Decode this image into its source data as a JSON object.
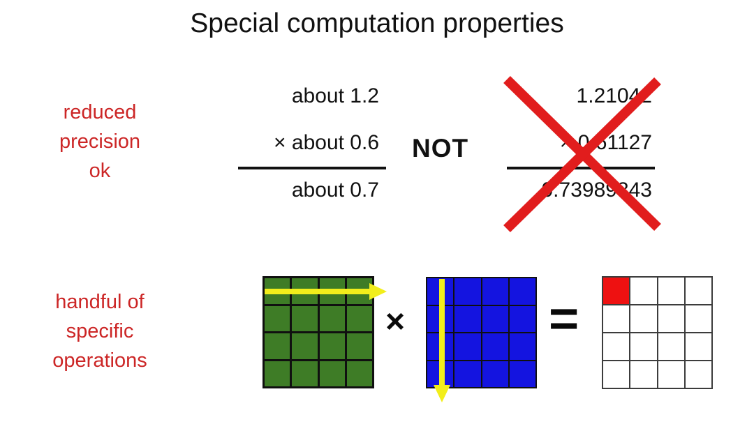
{
  "slide": {
    "title": "Special computation properties"
  },
  "colors": {
    "label_red": "#cc2626",
    "cross_red": "#e11d1d",
    "arrow_yellow": "#f2ee1b",
    "text_black": "#111111"
  },
  "precision_section": {
    "label": "reduced\nprecision\nok",
    "approx": {
      "operand1": "about 1.2",
      "operand2": "× about 0.6",
      "result": "about 0.7"
    },
    "not_label": "NOT",
    "exact": {
      "operand1": "1.21042",
      "operand2": "× 0.61127",
      "result": "0.73989343"
    }
  },
  "operations_section": {
    "label": "handful of\nspecific\noperations",
    "times_symbol": "×",
    "equals_symbol": "=",
    "matrix_a": {
      "rows": 4,
      "cols": 4,
      "cell_color": "#3e7c26",
      "line_color": "#101010",
      "annotation": "row-traversal-arrow"
    },
    "matrix_b": {
      "rows": 4,
      "cols": 4,
      "cell_color": "#1414e0",
      "line_color": "#101010",
      "annotation": "column-traversal-arrow"
    },
    "matrix_c": {
      "rows": 4,
      "cols": 4,
      "cell_color": "#ffffff",
      "line_color": "#3c3c3c",
      "highlight_cell": {
        "row": 0,
        "col": 0,
        "color": "#ee1111"
      }
    }
  }
}
